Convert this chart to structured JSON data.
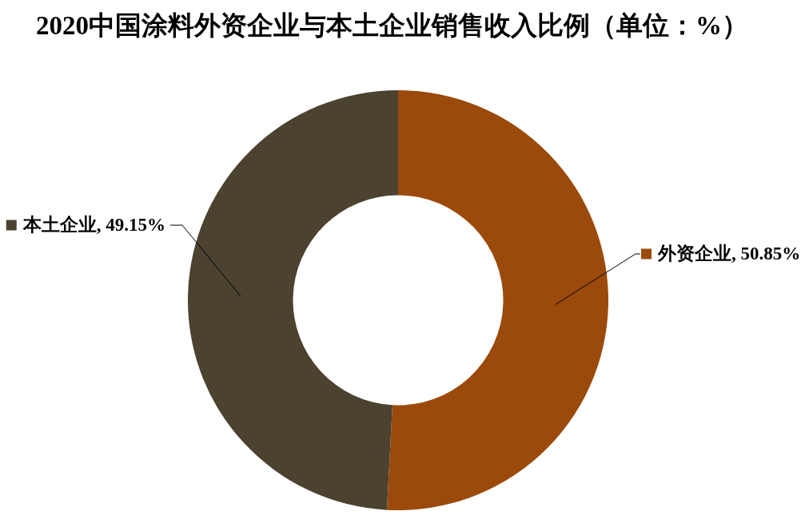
{
  "chart_data": {
    "type": "donut",
    "title": "2020中国涂料外资企业与本土企业销售收入比例（单位：%）",
    "categories": [
      "外资企业",
      "本土企业"
    ],
    "values": [
      50.85,
      49.15
    ],
    "colors": [
      "#9b4a0b",
      "#4b4230"
    ],
    "value_labels": [
      "50.85%",
      "49.15%"
    ],
    "legend": "right"
  }
}
